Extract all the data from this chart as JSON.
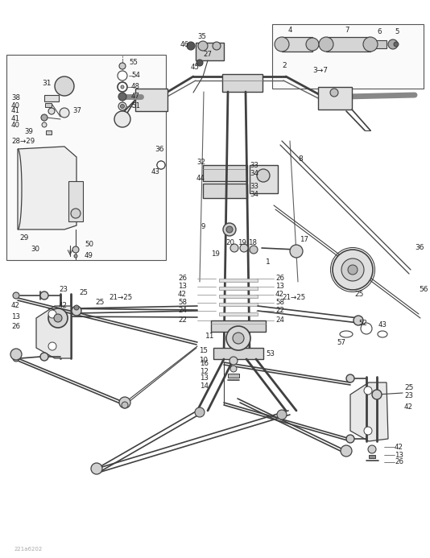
{
  "background_color": "#ffffff",
  "line_color": "#404040",
  "label_color": "#222222",
  "watermark": "221a6202",
  "fig_width": 5.34,
  "fig_height": 6.93,
  "dpi": 100
}
